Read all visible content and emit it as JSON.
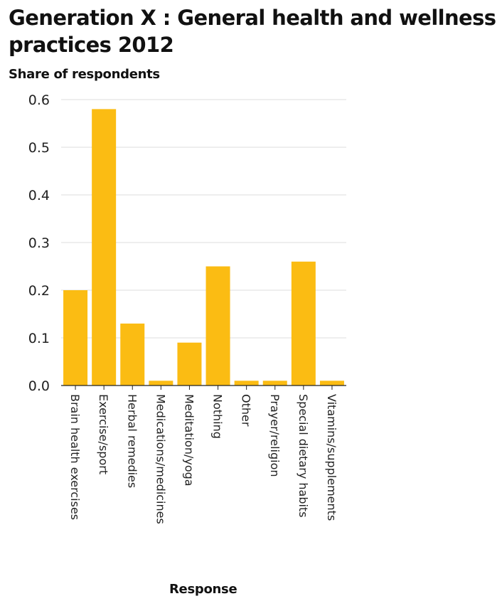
{
  "chart_data": {
    "type": "bar",
    "title": "Generation X : General health and wellness practices 2012",
    "xlabel": "Response",
    "ylabel": "Share of respondents",
    "categories": [
      "Brain health exercises",
      "Exercise/sport",
      "Herbal remedies",
      "Medications/medicines",
      "Meditation/yoga",
      "Nothing",
      "Other",
      "Prayer/religion",
      "Special dietary habits",
      "Vitamins/supplements"
    ],
    "values": [
      0.2,
      0.58,
      0.13,
      0.01,
      0.09,
      0.25,
      0.01,
      0.01,
      0.26,
      0.01
    ],
    "yticks": [
      "0.0",
      "0.1",
      "0.2",
      "0.3",
      "0.4",
      "0.5",
      "0.6"
    ],
    "ylim": [
      0,
      0.6
    ],
    "grid": true,
    "legend": "none",
    "bar_color": "#fbbc13",
    "grid_color": "#dddddd"
  }
}
